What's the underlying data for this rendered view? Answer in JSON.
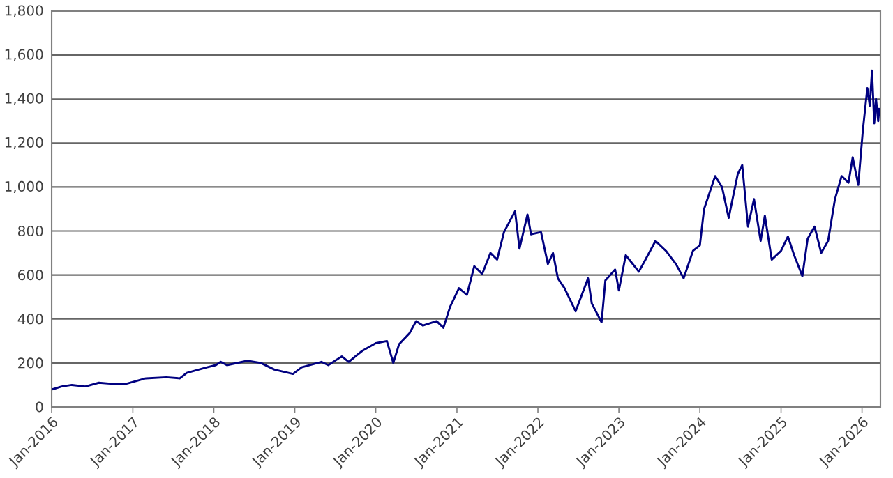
{
  "chart_data": {
    "type": "line",
    "x": [
      "2016-01-04",
      "2016-02-15",
      "2016-04-01",
      "2016-06-01",
      "2016-08-01",
      "2016-10-01",
      "2016-12-01",
      "2017-03-01",
      "2017-06-01",
      "2017-08-01",
      "2017-09-01",
      "2017-12-01",
      "2018-01-10",
      "2018-02-01",
      "2018-03-01",
      "2018-06-01",
      "2018-08-01",
      "2018-10-01",
      "2018-12-24",
      "2019-02-01",
      "2019-05-01",
      "2019-06-01",
      "2019-08-01",
      "2019-09-01",
      "2019-11-01",
      "2020-01-01",
      "2020-02-20",
      "2020-03-20",
      "2020-04-15",
      "2020-06-01",
      "2020-07-01",
      "2020-08-01",
      "2020-10-01",
      "2020-11-01",
      "2020-12-01",
      "2021-01-10",
      "2021-02-15",
      "2021-03-20",
      "2021-04-25",
      "2021-06-01",
      "2021-07-01",
      "2021-08-01",
      "2021-09-20",
      "2021-10-10",
      "2021-11-15",
      "2021-12-01",
      "2022-01-15",
      "2022-02-15",
      "2022-03-10",
      "2022-04-01",
      "2022-05-01",
      "2022-06-20",
      "2022-08-15",
      "2022-09-01",
      "2022-10-15",
      "2022-11-01",
      "2022-12-15",
      "2023-01-01",
      "2023-02-01",
      "2023-04-01",
      "2023-05-01",
      "2023-06-15",
      "2023-08-01",
      "2023-09-15",
      "2023-10-20",
      "2023-12-01",
      "2024-01-01",
      "2024-01-20",
      "2024-03-10",
      "2024-04-10",
      "2024-05-10",
      "2024-06-20",
      "2024-07-10",
      "2024-08-05",
      "2024-09-01",
      "2024-10-01",
      "2024-10-20",
      "2024-11-20",
      "2025-01-01",
      "2025-02-01",
      "2025-03-01",
      "2025-04-07",
      "2025-05-01",
      "2025-06-01",
      "2025-07-01",
      "2025-08-01",
      "2025-09-01",
      "2025-10-01",
      "2025-11-01",
      "2025-11-20",
      "2025-12-15",
      "2026-01-05",
      "2026-01-25",
      "2026-02-05",
      "2026-02-15",
      "2026-02-25",
      "2026-03-05",
      "2026-03-15",
      "2026-03-20"
    ],
    "series": [
      {
        "color": "#000080",
        "values": [
          80,
          93,
          100,
          93,
          110,
          105,
          105,
          130,
          135,
          130,
          155,
          180,
          190,
          205,
          190,
          210,
          200,
          170,
          150,
          180,
          205,
          190,
          230,
          205,
          255,
          290,
          300,
          200,
          285,
          335,
          390,
          370,
          390,
          360,
          455,
          540,
          510,
          640,
          605,
          700,
          670,
          795,
          890,
          720,
          875,
          785,
          795,
          650,
          700,
          585,
          540,
          435,
          585,
          470,
          385,
          575,
          625,
          530,
          690,
          615,
          670,
          755,
          710,
          650,
          585,
          710,
          735,
          900,
          1050,
          1000,
          860,
          1060,
          1100,
          820,
          945,
          755,
          870,
          670,
          710,
          775,
          690,
          595,
          765,
          820,
          700,
          755,
          945,
          1050,
          1020,
          1135,
          1010,
          1260,
          1450,
          1370,
          1530,
          1290,
          1400,
          1300,
          1360
        ]
      }
    ],
    "xlim": [
      "2016-01-01",
      "2026-03-25"
    ],
    "xticks": [
      {
        "value": "2016-01-01",
        "label": "Jan-2016"
      },
      {
        "value": "2017-01-01",
        "label": "Jan-2017"
      },
      {
        "value": "2018-01-01",
        "label": "Jan-2018"
      },
      {
        "value": "2019-01-01",
        "label": "Jan-2019"
      },
      {
        "value": "2020-01-01",
        "label": "Jan-2020"
      },
      {
        "value": "2021-01-01",
        "label": "Jan-2021"
      },
      {
        "value": "2022-01-01",
        "label": "Jan-2022"
      },
      {
        "value": "2023-01-01",
        "label": "Jan-2023"
      },
      {
        "value": "2024-01-01",
        "label": "Jan-2024"
      },
      {
        "value": "2025-01-01",
        "label": "Jan-2025"
      },
      {
        "value": "2026-01-01",
        "label": "Jan-2026"
      }
    ],
    "ylim": [
      0,
      1800
    ],
    "yticks": [
      {
        "value": 0,
        "label": "0"
      },
      {
        "value": 200,
        "label": "200"
      },
      {
        "value": 400,
        "label": "400"
      },
      {
        "value": 600,
        "label": "600"
      },
      {
        "value": 800,
        "label": "800"
      },
      {
        "value": 1000,
        "label": "1,000"
      },
      {
        "value": 1200,
        "label": "1,200"
      },
      {
        "value": 1400,
        "label": "1,400"
      },
      {
        "value": 1600,
        "label": "1,600"
      },
      {
        "value": 1800,
        "label": "1,800"
      }
    ],
    "grid": "y",
    "marker": "none",
    "line_style": "solid"
  }
}
